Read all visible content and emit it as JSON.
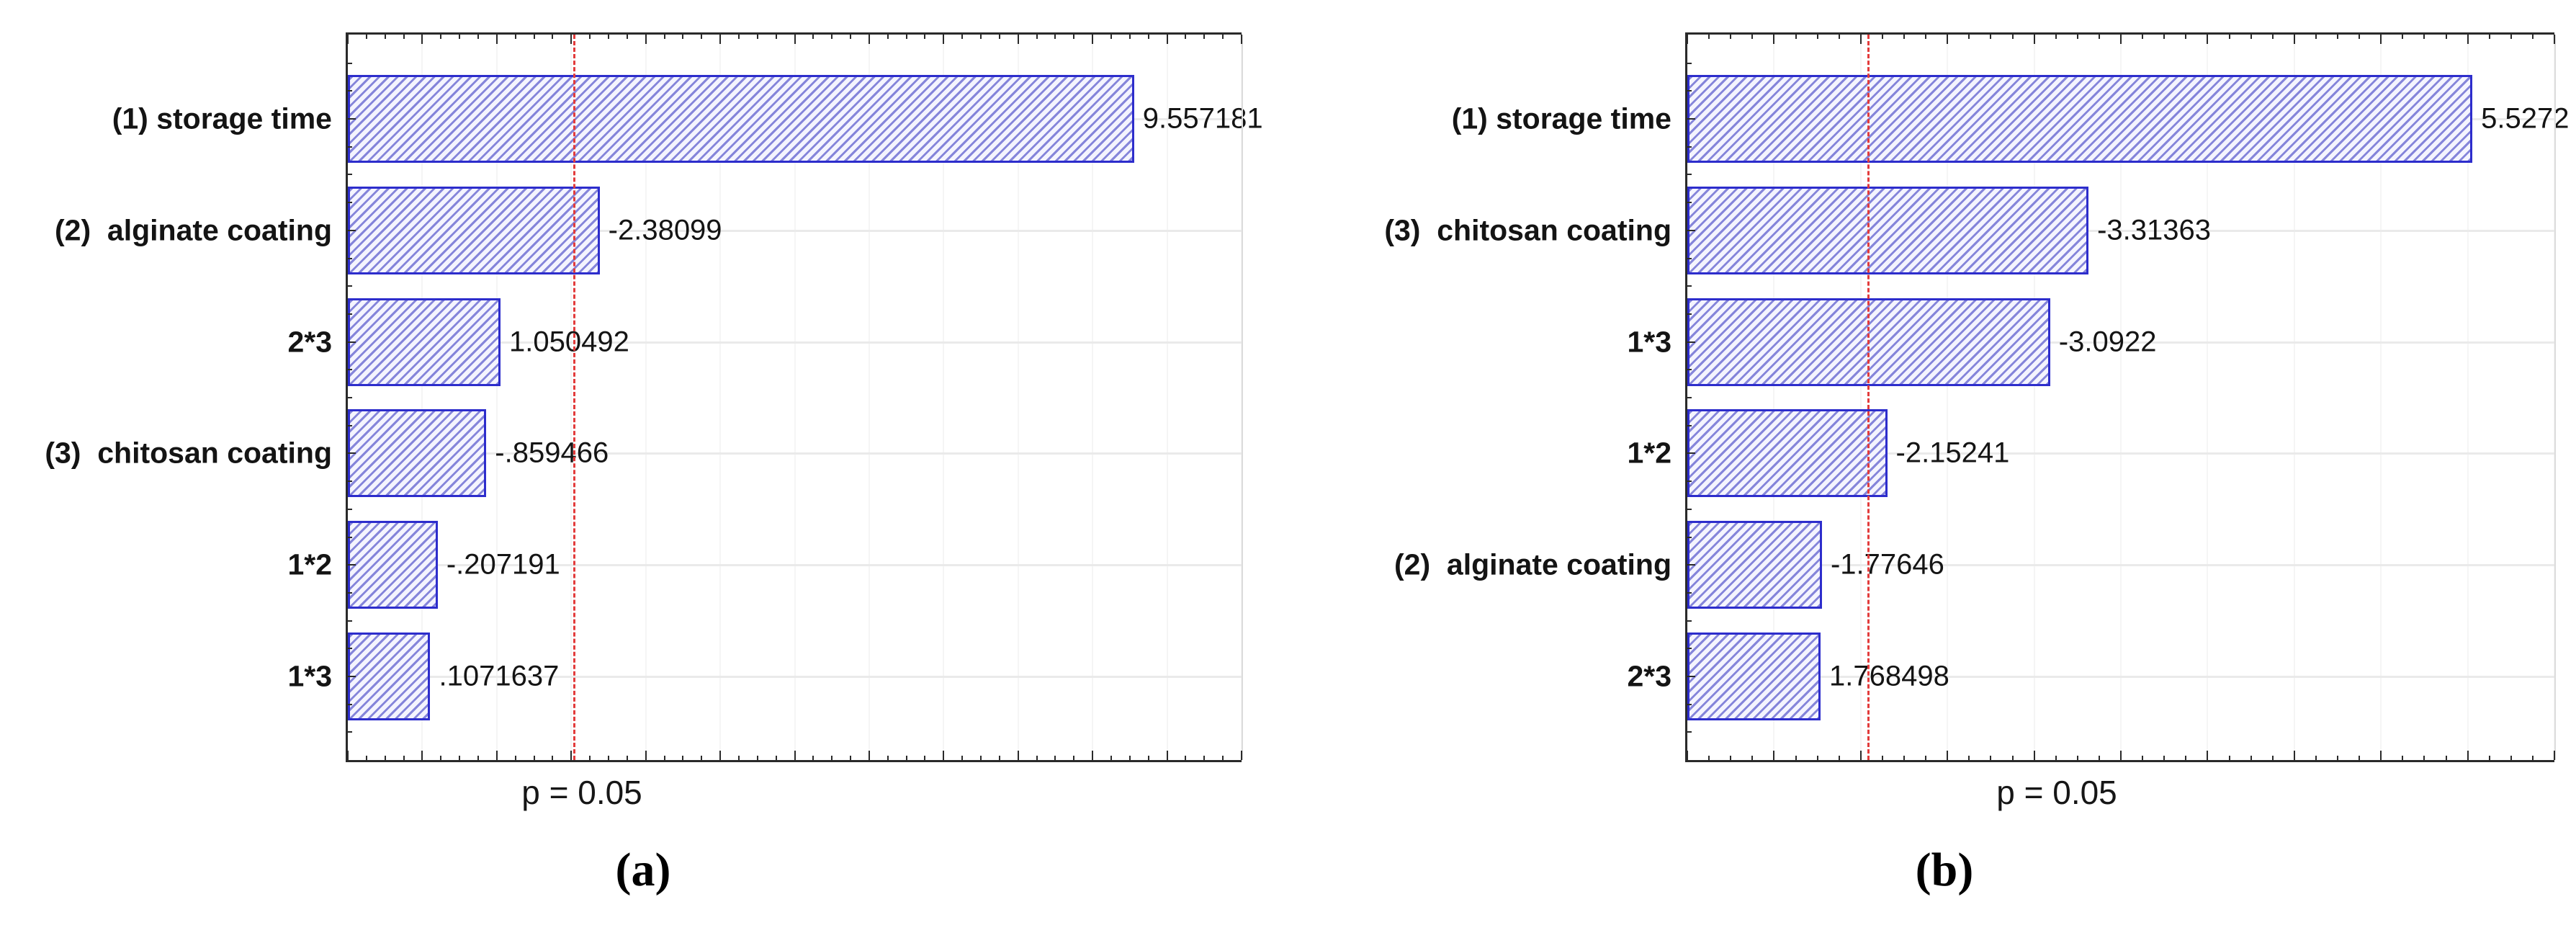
{
  "figure": {
    "background": "#ffffff",
    "bar_fill": "#f4f4fe",
    "bar_hatch_color": "#8585da",
    "bar_border_color": "#2d2dcc",
    "axis_color": "#2a2a2a",
    "gridline_color": "#eaeaea",
    "ref_line_color": "#e23b3b"
  },
  "chart_data": [
    {
      "type": "bar",
      "orientation": "horizontal",
      "title": "",
      "xlabel": "",
      "ylabel": "",
      "legend": "none",
      "grid": "light horizontal gridlines at each category row",
      "categories": [
        "(1) storage time",
        "(2)  alginate coating",
        "2*3",
        "(3)  chitosan coating",
        "1*2",
        "1*3"
      ],
      "values": [
        9.557181,
        -2.38099,
        1.050492,
        -0.859466,
        -0.207191,
        0.1071637
      ],
      "value_labels": [
        "9.557181",
        "-2.38099",
        "1.050492",
        "-.859466",
        "-.207191",
        ".1071637"
      ],
      "x_axis": {
        "min": -1,
        "max": 11,
        "major_tick": 1,
        "minor_tick": 0.25,
        "bars_start_at_min": true,
        "tick_labels_shown": false
      },
      "ref_line": {
        "label": "p = 0.05",
        "value": 2.034,
        "style": "dashed",
        "color": "#e23b3b"
      },
      "caption": "(a)"
    },
    {
      "type": "bar",
      "orientation": "horizontal",
      "title": "",
      "xlabel": "",
      "ylabel": "",
      "legend": "none",
      "grid": "light horizontal gridlines at each category row",
      "categories": [
        "(1) storage time",
        "(3)  chitosan coating",
        "1*3",
        "1*2",
        "(2)  alginate coating",
        "2*3"
      ],
      "values": [
        5.5272,
        -3.31363,
        -3.0922,
        -2.15241,
        -1.77646,
        1.768498
      ],
      "value_labels": [
        "5.5272",
        "-3.31363",
        "-3.0922",
        "-2.15241",
        "-1.77646",
        "1.768498"
      ],
      "x_axis": {
        "min": 1,
        "max": 6,
        "major_tick": 0.5,
        "minor_tick": 0.125,
        "bars_start_at_min": true,
        "tick_labels_shown": false
      },
      "ref_line": {
        "label": "p = 0.05",
        "value": 2.042,
        "style": "dashed",
        "color": "#e23b3b"
      },
      "caption": "(b)"
    }
  ]
}
